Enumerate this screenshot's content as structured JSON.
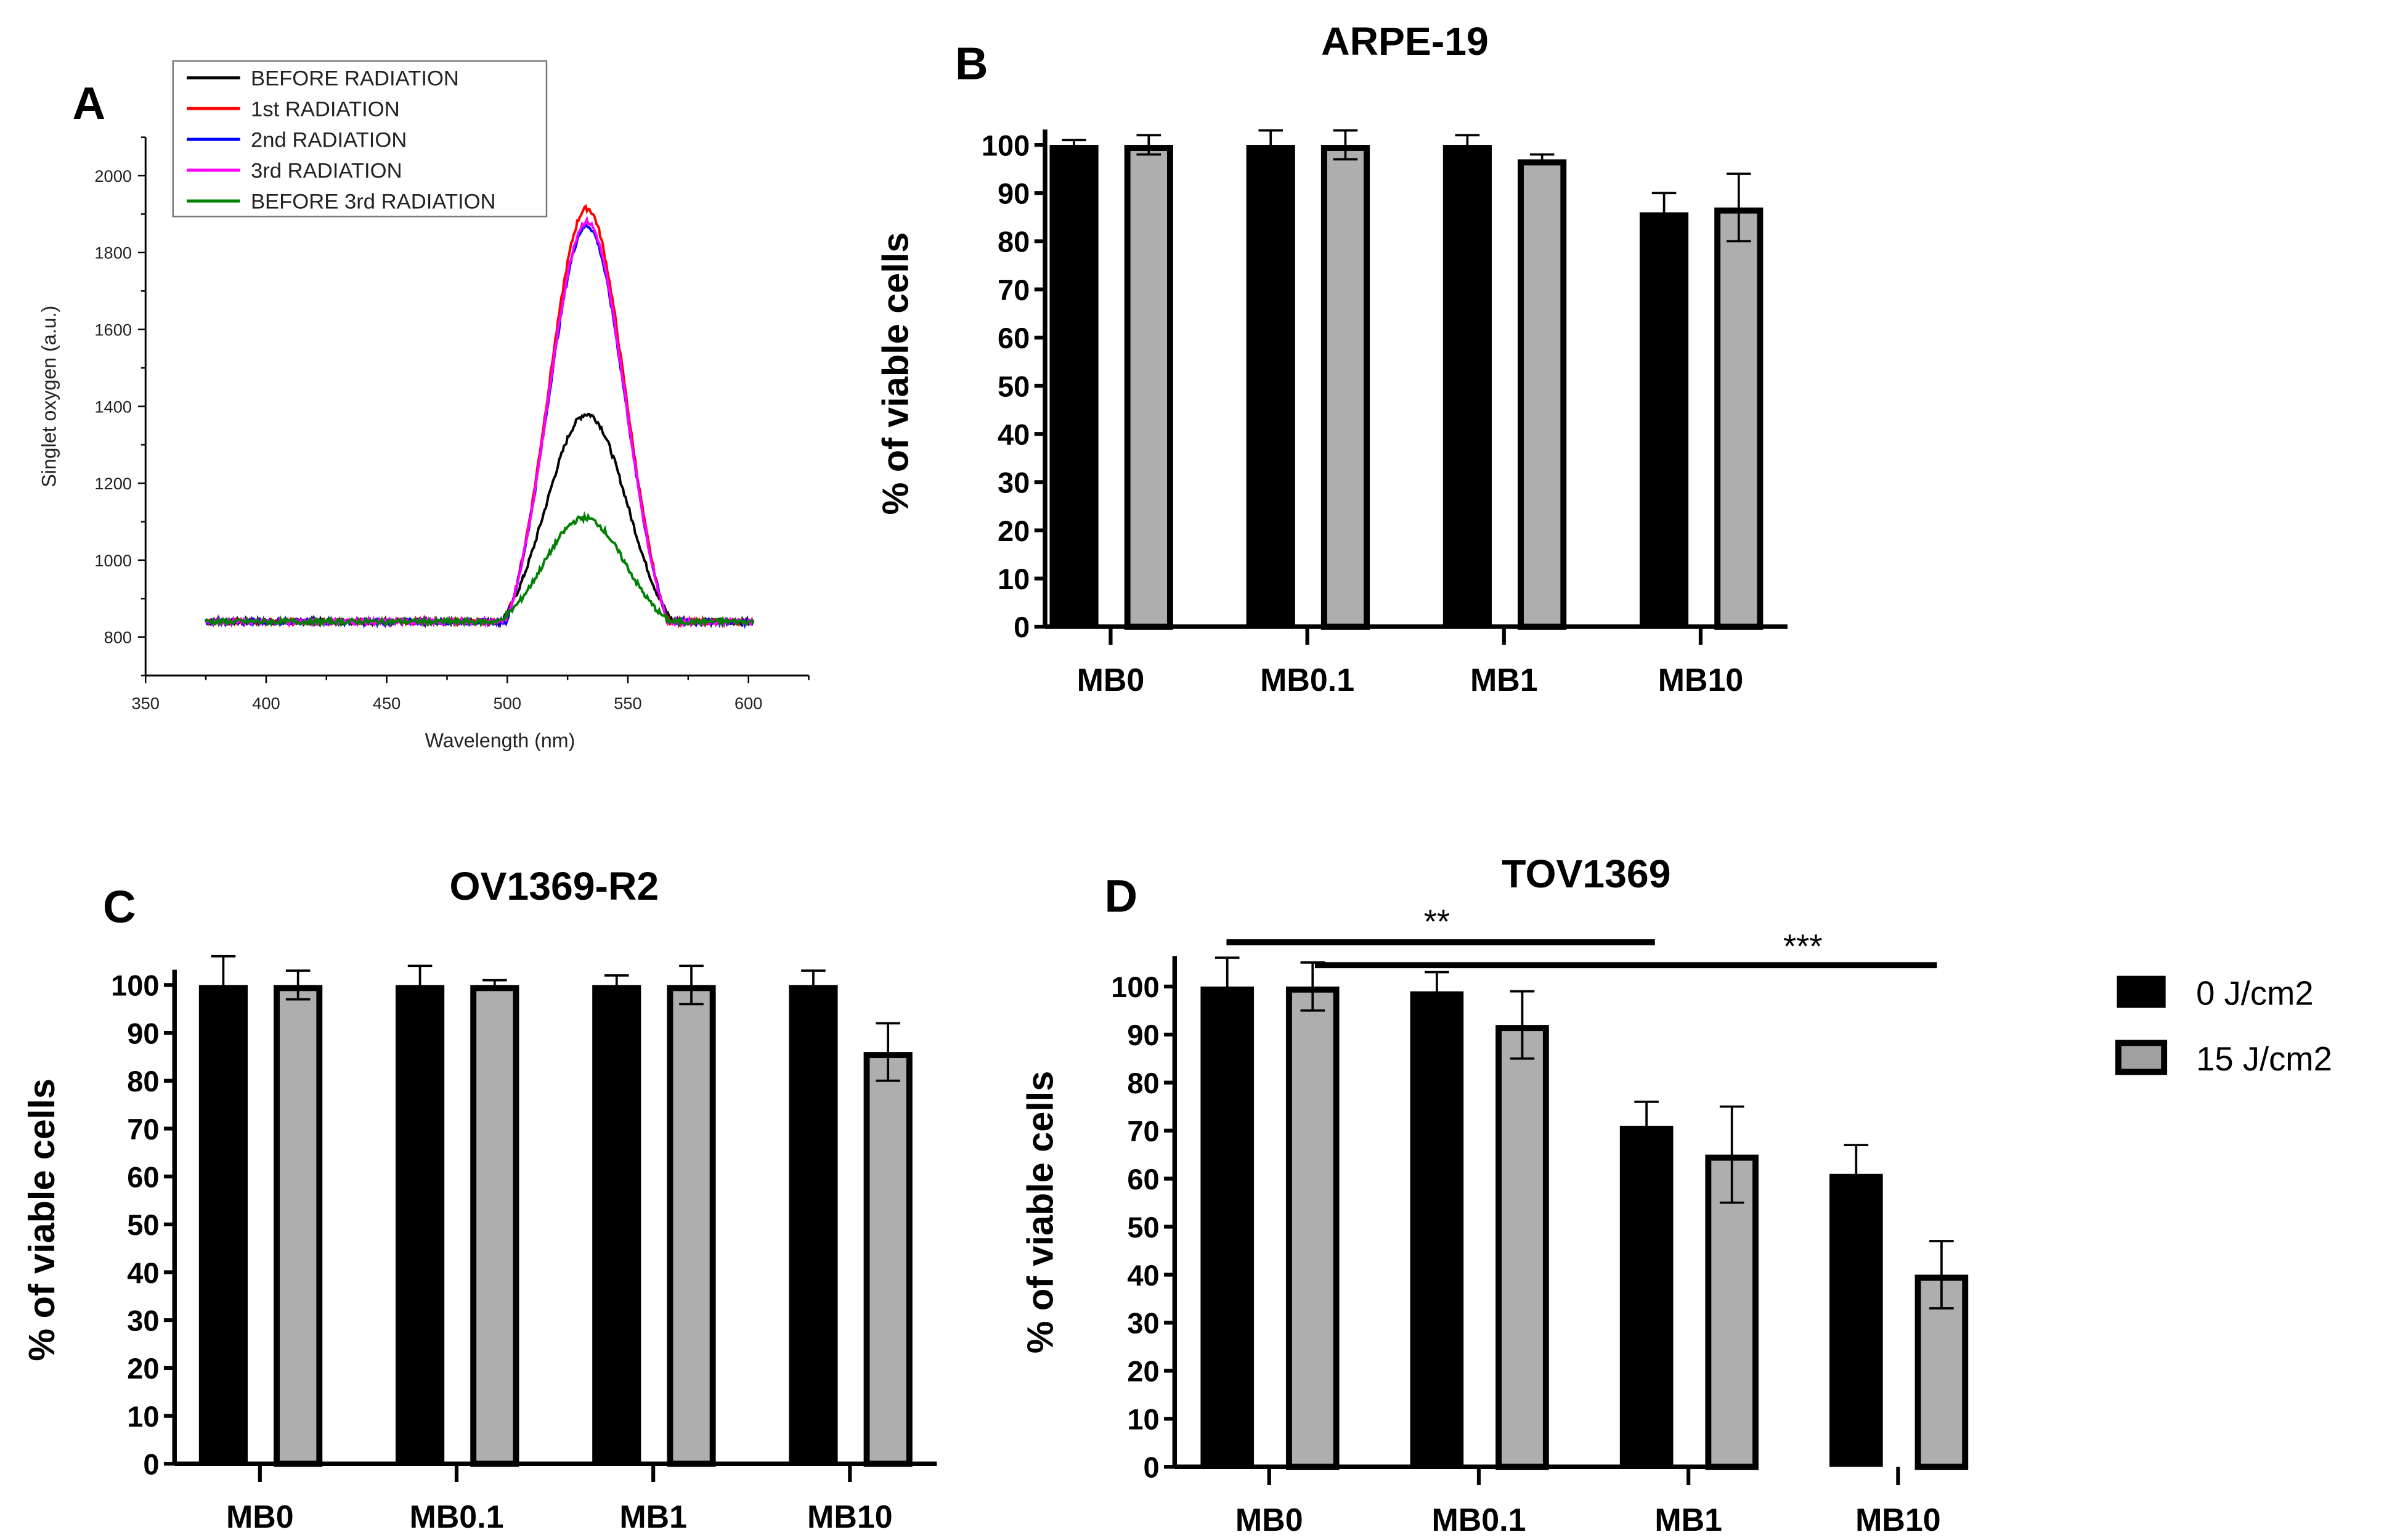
{
  "chart_data": [
    {
      "panel": "A",
      "type": "line",
      "xlabel": "Wavelength (nm)",
      "ylabel": "Singlet oxygen (a.u.)",
      "xlim": [
        350,
        625
      ],
      "ylim": [
        700,
        2100
      ],
      "xticks": [
        350,
        400,
        450,
        500,
        550,
        600
      ],
      "yticks": [
        800,
        1000,
        1200,
        1400,
        1600,
        1800,
        2000
      ],
      "x_range_measured": [
        375,
        602
      ],
      "legend_position": "top-left",
      "series": [
        {
          "name": "BEFORE RADIATION",
          "color": "#000000",
          "baseline": 840,
          "peak_x": 533,
          "peak_y": 1380,
          "width_nm": 17
        },
        {
          "name": "1st RADIATION",
          "color": "#ff0000",
          "baseline": 840,
          "peak_x": 533,
          "peak_y": 1915,
          "width_nm": 16
        },
        {
          "name": "2nd RADIATION",
          "color": "#0000ff",
          "baseline": 840,
          "peak_x": 533,
          "peak_y": 1870,
          "width_nm": 16
        },
        {
          "name": "3rd RADIATION",
          "color": "#ff00ff",
          "baseline": 840,
          "peak_x": 533,
          "peak_y": 1880,
          "width_nm": 16
        },
        {
          "name": "BEFORE 3rd RADIATION",
          "color": "#008000",
          "baseline": 840,
          "peak_x": 532,
          "peak_y": 1110,
          "width_nm": 17
        }
      ]
    },
    {
      "panel": "B",
      "type": "bar",
      "title": "ARPE-19",
      "ylabel": "% of viable cells",
      "categories": [
        "MB0",
        "MB0.1",
        "MB1",
        "MB10"
      ],
      "ylim": [
        0,
        100
      ],
      "yticks": [
        0,
        10,
        20,
        30,
        40,
        50,
        60,
        70,
        80,
        90,
        100
      ],
      "series": [
        {
          "name": "0 J/cm2",
          "color": "#000000",
          "values": [
            100,
            100,
            100,
            86
          ],
          "errors": [
            1,
            3,
            2,
            4
          ]
        },
        {
          "name": "15 J/cm2",
          "color": "#a0a0a0",
          "values": [
            100,
            100,
            97,
            87
          ],
          "errors": [
            2,
            3,
            1,
            7
          ]
        }
      ]
    },
    {
      "panel": "C",
      "type": "bar",
      "title": "OV1369-R2",
      "ylabel": "% of viable cells",
      "categories": [
        "MB0",
        "MB0.1",
        "MB1",
        "MB10"
      ],
      "ylim": [
        0,
        100
      ],
      "yticks": [
        0,
        10,
        20,
        30,
        40,
        50,
        60,
        70,
        80,
        90,
        100
      ],
      "series": [
        {
          "name": "0 J/cm2",
          "color": "#000000",
          "values": [
            100,
            100,
            100,
            100
          ],
          "errors": [
            6,
            4,
            2,
            3
          ]
        },
        {
          "name": "15 J/cm2",
          "color": "#a0a0a0",
          "values": [
            100,
            100,
            100,
            86
          ],
          "errors": [
            3,
            1,
            4,
            6
          ]
        }
      ]
    },
    {
      "panel": "D",
      "type": "bar",
      "title": "TOV1369",
      "ylabel": "% of viable cells",
      "categories": [
        "MB0",
        "MB0.1",
        "MB1",
        "MB10"
      ],
      "ylim": [
        0,
        100
      ],
      "yticks": [
        0,
        10,
        20,
        30,
        40,
        50,
        60,
        70,
        80,
        90,
        100
      ],
      "series": [
        {
          "name": "0 J/cm2",
          "color": "#000000",
          "values": [
            100,
            99,
            71,
            61
          ],
          "errors": [
            6,
            4,
            5,
            6
          ]
        },
        {
          "name": "15 J/cm2",
          "color": "#a0a0a0",
          "values": [
            100,
            92,
            65,
            40
          ],
          "errors": [
            5,
            7,
            10,
            7
          ]
        }
      ],
      "significance": [
        {
          "label": "**",
          "from": "MB0 0 J/cm2",
          "to": "MB1 0 J/cm2"
        },
        {
          "label": "***",
          "from": "MB0 15 J/cm2",
          "to": "MB10 15 J/cm2"
        }
      ]
    }
  ],
  "legend": {
    "items": [
      "0 J/cm2",
      "15 J/cm2"
    ]
  }
}
